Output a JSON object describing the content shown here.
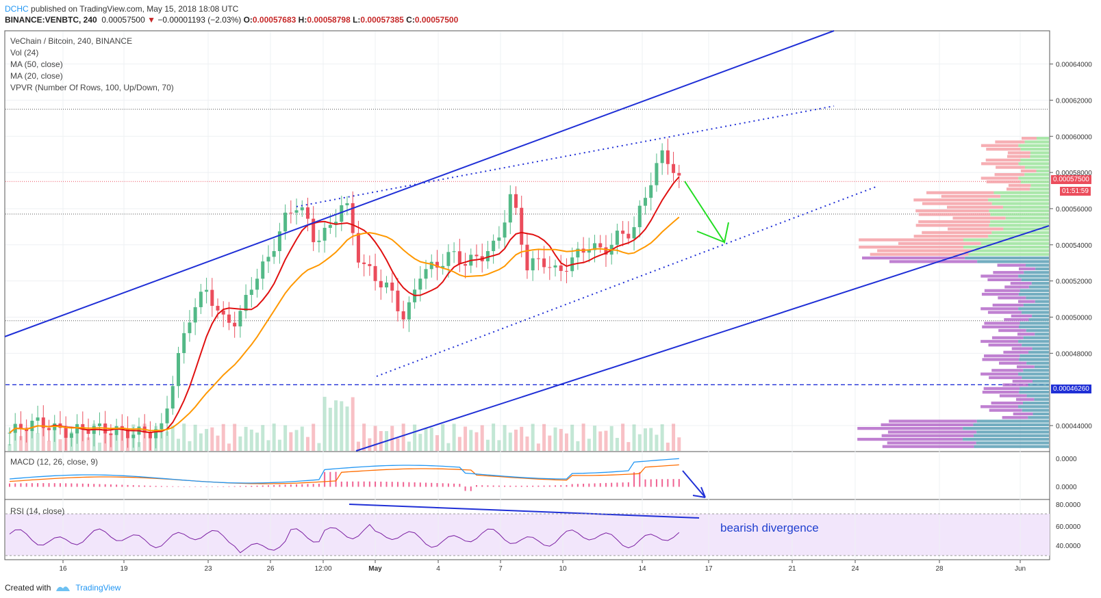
{
  "header": {
    "user": "DCHC",
    "published": "published on TradingView.com, May 15, 2018 18:08 UTC",
    "symbol": "BINANCE:VENBTC, 240",
    "last": "0.00057500",
    "arrow": "▼",
    "change": "−0.00001193 (−2.03%)",
    "o_label": "O:",
    "o_value": "0.00057683",
    "h_label": "H:",
    "h_value": "0.00058798",
    "l_label": "L:",
    "l_value": "0.00057385",
    "c_label": "C:",
    "c_value": "0.00057500"
  },
  "legend": {
    "title": "VeChain / Bitcoin, 240, BINANCE",
    "vol": "Vol (24)",
    "ma50": "MA (50, close)",
    "ma20": "MA (20, close)",
    "vpvr": "VPVR (Number Of Rows, 100, Up/Down, 70)"
  },
  "panes": {
    "macd_label": "MACD (12, 26, close, 9)",
    "rsi_label": "RSI (14, close)"
  },
  "annotation": "bearish divergence",
  "badges": {
    "price": "0.00057500",
    "timer": "01:51:59",
    "level": "0.00046260"
  },
  "footer": {
    "created": "Created with",
    "brand": "TradingView"
  },
  "colors": {
    "up": "#53b987",
    "down": "#eb4d5c",
    "ma20": "#e01010",
    "ma50": "#ff9800",
    "trend": "#1f2fd6",
    "arrow": "#22dd22",
    "macd": "#2196f3",
    "signal": "#ff6d00",
    "rsi": "#7b1fa2"
  },
  "chart_data": {
    "type": "candlestick",
    "price_axis": {
      "ticks": [
        "0.00064000",
        "0.00062000",
        "0.00060000",
        "0.00058000",
        "0.00056000",
        "0.00054000",
        "0.00052000",
        "0.00050000",
        "0.00048000",
        "0.00044000"
      ],
      "ylim": [
        0.000426,
        0.000658
      ]
    },
    "time_axis": {
      "ticks": [
        "16",
        "19",
        "23",
        "26",
        "12:00",
        "May",
        "4",
        "7",
        "10",
        "14",
        "17",
        "21",
        "24",
        "28",
        "Jun"
      ]
    },
    "macd_axis": {
      "ticks": [
        "0.0000",
        "0.0000"
      ]
    },
    "rsi_axis": {
      "ticks": [
        "80.0000",
        "60.0000",
        "40.0000"
      ],
      "ylim": [
        0,
        100
      ]
    },
    "horizontal_levels": [
      0.000615,
      0.000575,
      0.000557,
      0.000498,
      0.0004626
    ],
    "ohlc_last": {
      "open": 0.00057683,
      "high": 0.00058798,
      "low": 0.00057385,
      "close": 0.000575
    },
    "close_path": [
      0.000436,
      0.00044,
      0.000442,
      0.000438,
      0.000436,
      0.000439,
      0.000438,
      0.000437,
      0.000436,
      0.000436,
      0.000438,
      0.000475,
      0.000505,
      0.000515,
      0.000498,
      0.000498,
      0.00052,
      0.000532,
      0.000553,
      0.000564,
      0.000543,
      0.000548,
      0.000566,
      0.000531,
      0.000522,
      0.000515,
      0.000498,
      0.000525,
      0.000528,
      0.000535,
      0.00053,
      0.000534,
      0.00054,
      0.000569,
      0.000528,
      0.000532,
      0.000524,
      0.000532,
      0.00054,
      0.000536,
      0.000545,
      0.000548,
      0.000573,
      0.000592,
      0.000575
    ]
  }
}
